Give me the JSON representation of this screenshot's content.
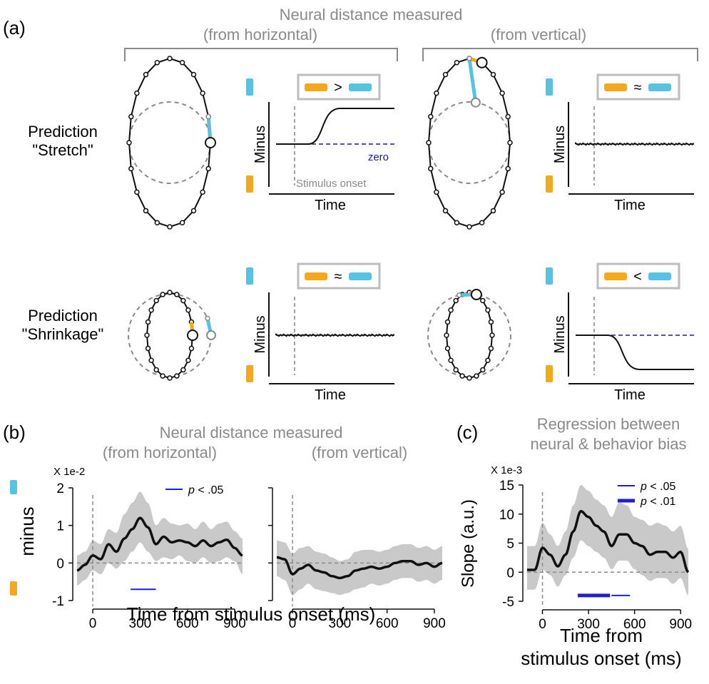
{
  "colors": {
    "orange": "#f5a81c",
    "cyan": "#56c3e3",
    "gray_text": "#8a8a8a",
    "zero_line": "#1c1c8c",
    "band": "#c9c9c9",
    "sig_bar": "#1f1fcf"
  },
  "panel_a": {
    "label": "(a)",
    "header": "Neural distance measured",
    "left_sub": "(from horizontal)",
    "right_sub": "(from vertical)",
    "row1_title_1": "Prediction",
    "row1_title_2": "\"Stretch\"",
    "row2_title_1": "Prediction",
    "row2_title_2": "\"Shrinkage\"",
    "ylabel": "Minus",
    "xlabel": "Time",
    "zero_label": "zero",
    "onset_label": "Stimulus onset",
    "legend_symbols": [
      ">",
      "≈",
      "≈",
      "<"
    ]
  },
  "panel_b": {
    "label": "(b)",
    "header": "Neural distance measured",
    "left_sub": "(from horizontal)",
    "right_sub": "(from vertical)",
    "ylabel": "minus",
    "xlabel": "Time from stimulus onset (ms)",
    "scale_note": "X 1e-2",
    "legend_p": "p",
    "legend_rest": " < .05"
  },
  "panel_c": {
    "label": "(c)",
    "header_1": "Regression between",
    "header_2": "neural & behavior bias",
    "ylabel": "Slope (a.u.)",
    "xlabel_1": "Time from",
    "xlabel_2": "stimulus onset (ms)",
    "scale_note": "X 1e-3",
    "legend1_p": "p",
    "legend1_rest": " < .05",
    "legend2_p": "p",
    "legend2_rest": " < .01"
  },
  "chart_data": [
    {
      "type": "line",
      "panel": "(b) from horizontal",
      "xlabel": "Time from stimulus onset (ms)",
      "ylabel": "minus",
      "scale": "X 1e-2",
      "xlim": [
        -100,
        950
      ],
      "ylim": [
        -1,
        2
      ],
      "x_ticks": [
        0,
        300,
        600,
        900
      ],
      "y_ticks": [
        -1,
        0,
        1,
        2
      ],
      "x": [
        -100,
        -50,
        0,
        50,
        100,
        150,
        200,
        250,
        300,
        350,
        400,
        450,
        500,
        550,
        600,
        650,
        700,
        750,
        800,
        850,
        900,
        950
      ],
      "mean": [
        -0.2,
        -0.05,
        0.2,
        0.1,
        0.5,
        0.3,
        0.65,
        0.9,
        1.2,
        0.95,
        0.5,
        0.7,
        0.55,
        0.6,
        0.55,
        0.45,
        0.6,
        0.45,
        0.55,
        0.62,
        0.4,
        0.2
      ],
      "ci_low": [
        -0.6,
        -0.45,
        -0.2,
        -0.3,
        0.0,
        -0.15,
        0.05,
        0.3,
        0.55,
        0.3,
        0.05,
        0.15,
        0.1,
        0.2,
        0.05,
        0.0,
        0.15,
        0.0,
        0.05,
        0.15,
        0.05,
        -0.3
      ],
      "ci_high": [
        0.2,
        0.3,
        0.6,
        0.5,
        0.9,
        0.8,
        1.3,
        1.6,
        1.9,
        1.6,
        1.0,
        1.2,
        1.05,
        1.0,
        1.05,
        0.9,
        1.1,
        0.9,
        1.05,
        1.1,
        0.85,
        0.65
      ],
      "significance": [
        {
          "label": "p < .05",
          "from": 240,
          "to": 400,
          "y": -0.7
        }
      ]
    },
    {
      "type": "line",
      "panel": "(b) from vertical",
      "xlim": [
        -100,
        950
      ],
      "ylim": [
        -1,
        2
      ],
      "x_ticks": [
        0,
        300,
        600,
        900
      ],
      "x": [
        -100,
        -50,
        0,
        50,
        100,
        150,
        200,
        250,
        300,
        350,
        400,
        450,
        500,
        550,
        600,
        650,
        700,
        750,
        800,
        850,
        900,
        950
      ],
      "mean": [
        0.15,
        0.1,
        -0.3,
        -0.15,
        -0.05,
        -0.2,
        -0.25,
        -0.35,
        -0.4,
        -0.35,
        -0.2,
        -0.15,
        -0.1,
        -0.15,
        -0.1,
        0.0,
        0.05,
        0.05,
        -0.05,
        0.0,
        -0.1,
        0.0
      ],
      "ci_low": [
        -0.35,
        -0.45,
        -0.85,
        -0.7,
        -0.55,
        -0.7,
        -0.75,
        -0.8,
        -0.85,
        -0.8,
        -0.7,
        -0.65,
        -0.55,
        -0.6,
        -0.55,
        -0.45,
        -0.4,
        -0.4,
        -0.5,
        -0.45,
        -0.55,
        -0.45
      ],
      "ci_high": [
        0.6,
        0.55,
        0.25,
        0.4,
        0.45,
        0.3,
        0.25,
        0.15,
        0.05,
        0.1,
        0.3,
        0.35,
        0.35,
        0.3,
        0.35,
        0.45,
        0.5,
        0.5,
        0.4,
        0.45,
        0.35,
        0.45
      ]
    },
    {
      "type": "line",
      "panel": "(c)",
      "xlabel": "Time from stimulus onset (ms)",
      "ylabel": "Slope (a.u.)",
      "scale": "X 1e-3",
      "xlim": [
        -100,
        950
      ],
      "ylim": [
        -5,
        15
      ],
      "x_ticks": [
        0,
        300,
        600,
        900
      ],
      "y_ticks": [
        -5,
        0,
        5,
        10,
        15
      ],
      "x": [
        -100,
        -50,
        0,
        50,
        100,
        150,
        200,
        250,
        300,
        350,
        400,
        450,
        500,
        550,
        600,
        650,
        700,
        750,
        800,
        850,
        900,
        950
      ],
      "mean": [
        0.4,
        0.4,
        4.2,
        3.0,
        1.0,
        3.0,
        7.0,
        10.5,
        9.5,
        8.0,
        7.0,
        4.5,
        6.5,
        6.5,
        5.0,
        4.5,
        3.0,
        3.5,
        3.5,
        2.5,
        3.5,
        0.0
      ],
      "ci_low": [
        -3.0,
        -3.0,
        0.5,
        -0.5,
        -2.5,
        -0.5,
        2.5,
        5.5,
        4.5,
        3.5,
        2.5,
        0.5,
        2.0,
        2.0,
        0.5,
        -0.5,
        -1.5,
        -1.0,
        -1.0,
        -2.0,
        -1.0,
        -4.0
      ],
      "ci_high": [
        4.5,
        4.5,
        8.5,
        6.5,
        4.5,
        7.0,
        11.5,
        15.0,
        14.0,
        12.5,
        11.5,
        9.5,
        12.0,
        11.5,
        9.5,
        9.0,
        8.0,
        8.5,
        8.0,
        7.0,
        8.0,
        4.0
      ],
      "significance": [
        {
          "label": "p < .01",
          "from": 230,
          "to": 440,
          "y": -4
        },
        {
          "label": "p < .05",
          "from": 450,
          "to": 570,
          "y": -4
        }
      ]
    }
  ]
}
